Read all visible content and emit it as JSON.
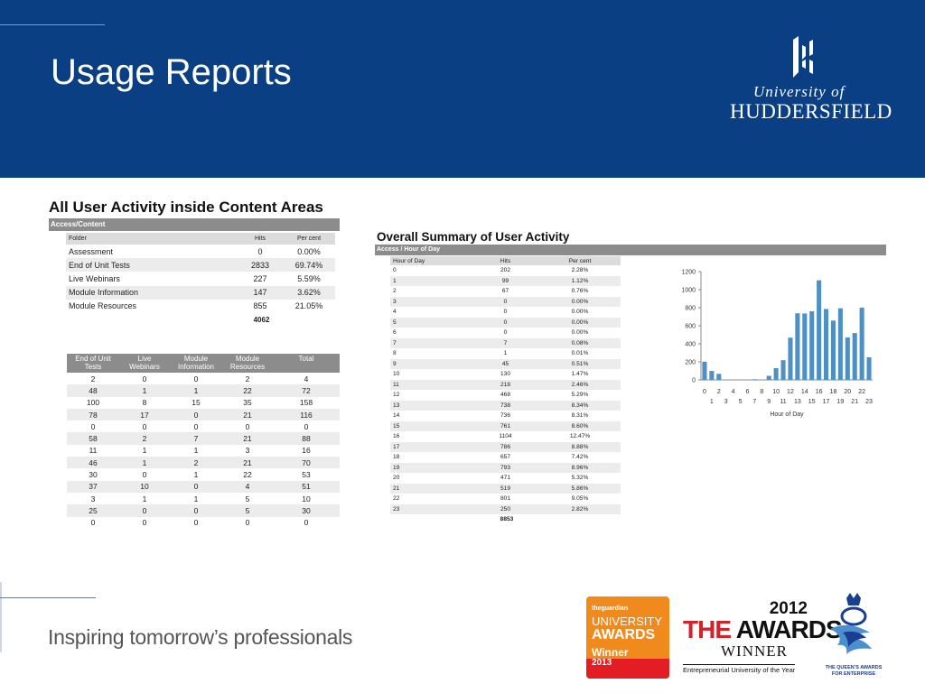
{
  "slide": {
    "title": "Usage Reports",
    "logo": {
      "line1": "University of",
      "line2": "HUDDERSFIELD"
    }
  },
  "content_report": {
    "title": "All User Activity inside Content Areas",
    "section": "Access/Content",
    "headers": {
      "folder": "Folder",
      "hits": "Hits",
      "percent": "Per cent"
    },
    "rows": [
      {
        "folder": "Assessment",
        "hits": "0",
        "percent": "0.00%"
      },
      {
        "folder": "End of Unit Tests",
        "hits": "2833",
        "percent": "69.74%"
      },
      {
        "folder": "Live Webinars",
        "hits": "227",
        "percent": "5.59%"
      },
      {
        "folder": "Module Information",
        "hits": "147",
        "percent": "3.62%"
      },
      {
        "folder": "Module Resources",
        "hits": "855",
        "percent": "21.05%"
      }
    ],
    "total": "4062"
  },
  "user_table": {
    "headers": [
      "End of Unit\nTests",
      "Live\nWebinars",
      "Module\nInformation",
      "Module\nResources",
      "Total"
    ],
    "rows": [
      [
        "2",
        "0",
        "0",
        "2",
        "4"
      ],
      [
        "48",
        "1",
        "1",
        "22",
        "72"
      ],
      [
        "100",
        "8",
        "15",
        "35",
        "158"
      ],
      [
        "78",
        "17",
        "0",
        "21",
        "116"
      ],
      [
        "0",
        "0",
        "0",
        "0",
        "0"
      ],
      [
        "58",
        "2",
        "7",
        "21",
        "88"
      ],
      [
        "11",
        "1",
        "1",
        "3",
        "16"
      ],
      [
        "46",
        "1",
        "2",
        "21",
        "70"
      ],
      [
        "30",
        "0",
        "1",
        "22",
        "53"
      ],
      [
        "37",
        "10",
        "0",
        "4",
        "51"
      ],
      [
        "3",
        "1",
        "1",
        "5",
        "10"
      ],
      [
        "25",
        "0",
        "0",
        "5",
        "30"
      ],
      [
        "0",
        "0",
        "0",
        "0",
        "0"
      ]
    ]
  },
  "summary_report": {
    "title": "Overall Summary of User Activity",
    "section": "Access / Hour of Day",
    "headers": {
      "hour": "Hour of Day",
      "hits": "Hits",
      "percent": "Per cent"
    },
    "rows": [
      {
        "hour": "0",
        "hits": "202",
        "percent": "2.28%"
      },
      {
        "hour": "1",
        "hits": "99",
        "percent": "1.12%"
      },
      {
        "hour": "2",
        "hits": "67",
        "percent": "0.76%"
      },
      {
        "hour": "3",
        "hits": "0",
        "percent": "0.00%"
      },
      {
        "hour": "4",
        "hits": "0",
        "percent": "0.00%"
      },
      {
        "hour": "5",
        "hits": "0",
        "percent": "0.00%"
      },
      {
        "hour": "6",
        "hits": "0",
        "percent": "0.00%"
      },
      {
        "hour": "7",
        "hits": "7",
        "percent": "0.08%"
      },
      {
        "hour": "8",
        "hits": "1",
        "percent": "0.01%"
      },
      {
        "hour": "9",
        "hits": "45",
        "percent": "0.51%"
      },
      {
        "hour": "10",
        "hits": "130",
        "percent": "1.47%"
      },
      {
        "hour": "11",
        "hits": "218",
        "percent": "2.46%"
      },
      {
        "hour": "12",
        "hits": "468",
        "percent": "5.29%"
      },
      {
        "hour": "13",
        "hits": "738",
        "percent": "8.34%"
      },
      {
        "hour": "14",
        "hits": "736",
        "percent": "8.31%"
      },
      {
        "hour": "15",
        "hits": "761",
        "percent": "8.60%"
      },
      {
        "hour": "16",
        "hits": "1104",
        "percent": "12.47%"
      },
      {
        "hour": "17",
        "hits": "786",
        "percent": "8.88%"
      },
      {
        "hour": "18",
        "hits": "657",
        "percent": "7.42%"
      },
      {
        "hour": "19",
        "hits": "793",
        "percent": "8.96%"
      },
      {
        "hour": "20",
        "hits": "471",
        "percent": "5.32%"
      },
      {
        "hour": "21",
        "hits": "519",
        "percent": "5.86%"
      },
      {
        "hour": "22",
        "hits": "801",
        "percent": "9.05%"
      },
      {
        "hour": "23",
        "hits": "250",
        "percent": "2.82%"
      }
    ],
    "total": "8853"
  },
  "chart_data": {
    "type": "bar",
    "xlabel": "Hour of Day",
    "ylabel": "",
    "categories": [
      "0",
      "1",
      "2",
      "3",
      "4",
      "5",
      "6",
      "7",
      "8",
      "9",
      "10",
      "11",
      "12",
      "13",
      "14",
      "15",
      "16",
      "17",
      "18",
      "19",
      "20",
      "21",
      "22",
      "23"
    ],
    "values": [
      202,
      99,
      67,
      0,
      0,
      0,
      0,
      7,
      1,
      45,
      130,
      218,
      468,
      738,
      736,
      761,
      1104,
      786,
      657,
      793,
      471,
      519,
      801,
      250
    ],
    "ylim": [
      0,
      1200
    ],
    "yticks": [
      "0",
      "200",
      "400",
      "600",
      "800",
      "1000",
      "1200"
    ],
    "xticks_top": [
      "0",
      "2",
      "4",
      "6",
      "8",
      "10",
      "12",
      "14",
      "16",
      "18",
      "20",
      "22"
    ],
    "xticks_bottom": [
      "1",
      "3",
      "5",
      "7",
      "9",
      "11",
      "13",
      "15",
      "17",
      "19",
      "21",
      "23"
    ],
    "bar_color": "#4f8fc4",
    "grid": false,
    "legend": "none"
  },
  "footer": {
    "tagline": "Inspiring tomorrow’s professionals",
    "guardian": {
      "small": "theguardian",
      "university": "UNIVERSITY",
      "awards": "AWARDS",
      "winner": "Winner",
      "year": "2013"
    },
    "the_awards": {
      "year": "2012",
      "the": "THE",
      "awards": "AWARDS",
      "winner": "WINNER",
      "subtitle": "Entrepreneurial University of the Year"
    },
    "queens": {
      "text": "THE QUEEN’S AWARDS FOR ENTERPRISE"
    }
  },
  "colors": {
    "header": "#0a3f84",
    "section_bar": "#8c8c8c",
    "row_alt": "#ececec",
    "guardian_orange": "#f08a1c",
    "guardian_red": "#e21d23",
    "the_red": "#d2232a"
  }
}
